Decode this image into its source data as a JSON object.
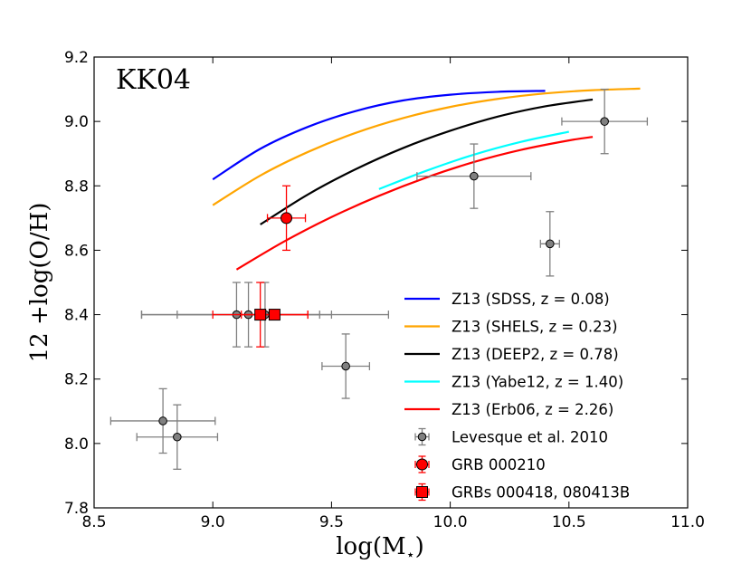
{
  "chart_data": {
    "type": "scatter",
    "panel_label": "KK04",
    "xlabel": "log(M",
    "xlabel_sub": "⋆",
    "xlabel_close": ")",
    "ylabel": "12 +log(O/H)",
    "xlim": [
      8.5,
      11.0
    ],
    "ylim": [
      7.8,
      9.2
    ],
    "xticks": [
      8.5,
      9.0,
      9.5,
      10.0,
      10.5,
      11.0
    ],
    "xtick_labels": [
      "8.5",
      "9.0",
      "9.5",
      "10.0",
      "10.5",
      "11.0"
    ],
    "yticks": [
      7.8,
      8.0,
      8.2,
      8.4,
      8.6,
      8.8,
      9.0,
      9.2
    ],
    "ytick_labels": [
      "7.8",
      "8.0",
      "8.2",
      "8.4",
      "8.6",
      "8.8",
      "9.0",
      "9.2"
    ],
    "legend_position": "lower-right",
    "lines": [
      {
        "name": "Z13 (SDSS, z = 0.08)",
        "color": "#0000ff",
        "x": [
          9.0,
          9.2,
          9.4,
          9.6,
          9.8,
          10.0,
          10.2,
          10.4
        ],
        "y": [
          8.82,
          8.915,
          8.983,
          9.032,
          9.065,
          9.083,
          9.092,
          9.095
        ]
      },
      {
        "name": "Z13 (SHELS, z = 0.23)",
        "color": "#ffa500",
        "x": [
          9.0,
          9.2,
          9.4,
          9.6,
          9.8,
          10.0,
          10.2,
          10.4,
          10.6,
          10.8
        ],
        "y": [
          8.74,
          8.832,
          8.905,
          8.964,
          9.01,
          9.045,
          9.07,
          9.087,
          9.097,
          9.102
        ]
      },
      {
        "name": "Z13 (DEEP2, z = 0.78)",
        "color": "#000000",
        "x": [
          9.2,
          9.4,
          9.6,
          9.8,
          10.0,
          10.2,
          10.4,
          10.6
        ],
        "y": [
          8.68,
          8.773,
          8.851,
          8.917,
          8.971,
          9.015,
          9.047,
          9.068
        ]
      },
      {
        "name": "Z13 (Yabe12, z = 1.40)",
        "color": "#00ffff",
        "x": [
          9.7,
          9.9,
          10.1,
          10.3,
          10.5
        ],
        "y": [
          8.79,
          8.847,
          8.897,
          8.937,
          8.968
        ]
      },
      {
        "name": "Z13 (Erb06, z = 2.26)",
        "color": "#ff0000",
        "x": [
          9.1,
          9.3,
          9.5,
          9.7,
          9.9,
          10.1,
          10.3,
          10.5,
          10.6
        ],
        "y": [
          8.54,
          8.627,
          8.703,
          8.769,
          8.826,
          8.874,
          8.912,
          8.941,
          8.952
        ]
      }
    ],
    "scatter_series": [
      {
        "name": "Levesque et al. 2010",
        "marker": "circle",
        "color": "#808080",
        "ecolor": "#808080",
        "points": [
          {
            "x": 10.65,
            "y": 9.0,
            "xerr": 0.18,
            "yerr": 0.1
          },
          {
            "x": 10.1,
            "y": 8.83,
            "xerr": 0.24,
            "yerr": 0.1
          },
          {
            "x": 10.42,
            "y": 8.62,
            "xerr": 0.04,
            "yerr": 0.1
          },
          {
            "x": 9.1,
            "y": 8.4,
            "xerr": 0.4,
            "yerr": 0.1
          },
          {
            "x": 9.15,
            "y": 8.4,
            "xerr": 0.3,
            "yerr": 0.1
          },
          {
            "x": 9.22,
            "y": 8.4,
            "xerr": 0.52,
            "yerr": 0.1
          },
          {
            "x": 9.56,
            "y": 8.24,
            "xerr": 0.1,
            "yerr": 0.1
          },
          {
            "x": 8.79,
            "y": 8.07,
            "xerr": 0.22,
            "yerr": 0.1
          },
          {
            "x": 8.85,
            "y": 8.02,
            "xerr": 0.17,
            "yerr": 0.1
          }
        ]
      },
      {
        "name": "GRB 000210",
        "marker": "circle",
        "color": "#ff0000",
        "ecolor": "#ff0000",
        "points": [
          {
            "x": 9.31,
            "y": 8.7,
            "xerr": 0.08,
            "yerr": 0.1
          }
        ]
      },
      {
        "name": "GRBs 000418, 080413B",
        "marker": "square",
        "color": "#ff0000",
        "ecolor": "#ff0000",
        "points": [
          {
            "x": 9.2,
            "y": 8.4,
            "xerr": 0.2,
            "yerr": 0.1
          },
          {
            "x": 9.26,
            "y": 8.4,
            "xerr": 0.14,
            "yerr": 0.0
          }
        ]
      }
    ]
  }
}
